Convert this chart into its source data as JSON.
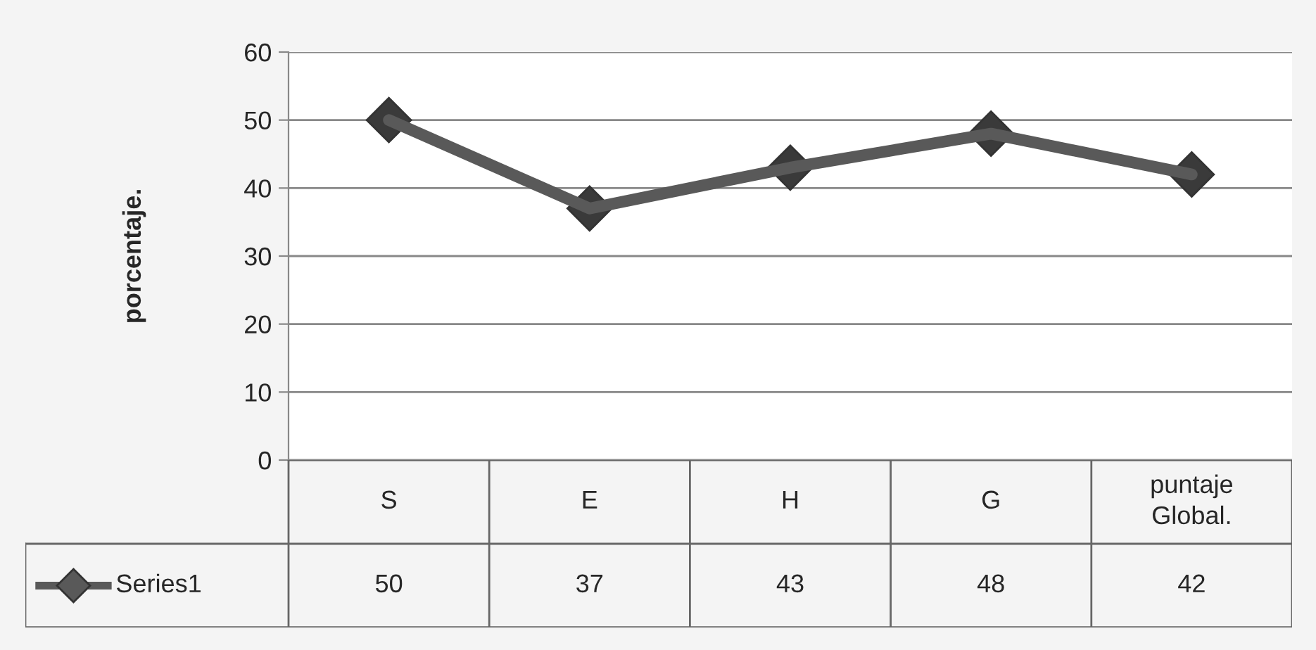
{
  "chart_data": {
    "type": "line",
    "ylabel": "porcentaje.",
    "categories": [
      "S",
      "E",
      "H",
      "G",
      "puntaje Global."
    ],
    "series": [
      {
        "name": "Series1",
        "color": "#595959",
        "values": [
          50,
          37,
          43,
          48,
          42
        ]
      }
    ],
    "ylim": [
      0,
      60
    ],
    "yticks": [
      0,
      10,
      20,
      30,
      40,
      50,
      60
    ],
    "grid": "y",
    "legend": "bottom left",
    "marker": "diamond",
    "line_style": "solid",
    "data_labels": true
  }
}
